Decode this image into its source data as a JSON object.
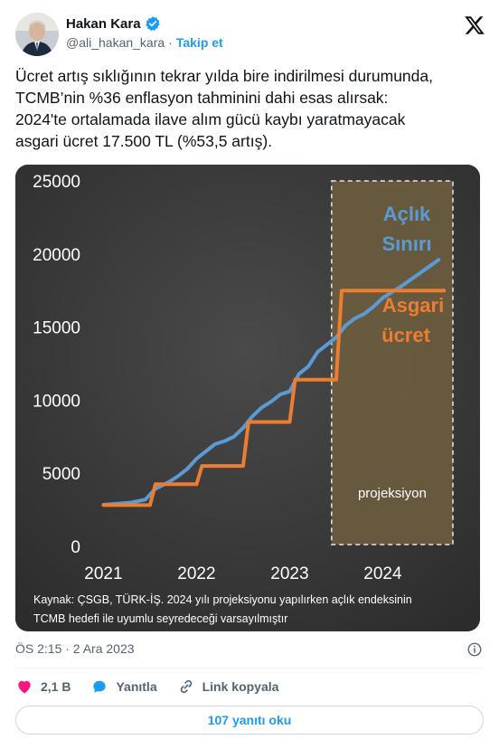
{
  "user": {
    "name": "Hakan Kara",
    "handle": "@ali_hakan_kara",
    "separator": "·",
    "follow_label": "Takip et",
    "verified_color": "#1d9bf0"
  },
  "tweet": {
    "lines": [
      "Ücret artış sıklığının tekrar yılda bire indirilmesi durumunda,",
      "TCMB’nin %36 enflasyon tahminini dahi esas alırsak:",
      "2024'te ortalamada ilave alım gücü kaybı yaratmayacak",
      "asgari ücret 17.500 TL (%53,5 artış)."
    ],
    "timestamp": "ÖS 2:15 · 2 Ara 2023"
  },
  "actions": {
    "like_count": "2,1 B",
    "reply_label": "Yanıtla",
    "copy_link_label": "Link kopyala",
    "read_replies_label": "107 yanıtı oku"
  },
  "chart_data": {
    "type": "line",
    "xlim": [
      2020.85,
      2024.85
    ],
    "ylim": [
      0,
      25000
    ],
    "y_ticks": [
      "0",
      "5000",
      "10000",
      "15000",
      "20000",
      "25000"
    ],
    "y_tick_values": [
      0,
      5000,
      10000,
      15000,
      20000,
      25000
    ],
    "x_ticks": [
      "2021",
      "2022",
      "2023",
      "2024"
    ],
    "x_tick_values": [
      2021,
      2022,
      2023,
      2024
    ],
    "series": [
      {
        "name": "Açlık Sınırı",
        "color": "#5b9bd5",
        "step": false,
        "points": [
          [
            2021.0,
            2850
          ],
          [
            2021.3,
            3000
          ],
          [
            2021.45,
            3200
          ],
          [
            2021.55,
            3900
          ],
          [
            2021.7,
            4400
          ],
          [
            2021.8,
            4800
          ],
          [
            2021.9,
            5300
          ],
          [
            2022.0,
            6000
          ],
          [
            2022.1,
            6500
          ],
          [
            2022.2,
            7000
          ],
          [
            2022.3,
            7200
          ],
          [
            2022.4,
            7500
          ],
          [
            2022.5,
            8100
          ],
          [
            2022.6,
            8900
          ],
          [
            2022.7,
            9500
          ],
          [
            2022.8,
            9900
          ],
          [
            2022.9,
            10400
          ],
          [
            2023.0,
            10600
          ],
          [
            2023.1,
            11800
          ],
          [
            2023.2,
            12300
          ],
          [
            2023.3,
            13300
          ],
          [
            2023.4,
            13800
          ],
          [
            2023.5,
            14300
          ],
          [
            2023.6,
            15100
          ],
          [
            2023.7,
            15600
          ],
          [
            2023.8,
            15900
          ],
          [
            2023.9,
            16400
          ],
          [
            2024.0,
            17000
          ],
          [
            2024.2,
            17800
          ],
          [
            2024.4,
            18700
          ],
          [
            2024.6,
            19600
          ]
        ]
      },
      {
        "name": "Asgari ücret",
        "color": "#ed7d31",
        "step": true,
        "points": [
          [
            2021.0,
            2826
          ],
          [
            2021.5,
            4253
          ],
          [
            2022.0,
            5500
          ],
          [
            2022.5,
            8507
          ],
          [
            2023.0,
            11402
          ],
          [
            2023.5,
            17500
          ],
          [
            2024.6,
            17500
          ]
        ]
      }
    ],
    "projection": {
      "from": 2023.45,
      "to": 2024.9,
      "label": "projeksiyon",
      "fill": "#6b5d3e"
    },
    "labels": {
      "acl_line1": "Açlık",
      "acl_line2": "Sınırı",
      "asg_line1": "Asgari",
      "asg_line2": "ücret"
    },
    "source_note_line1": "Kaynak: ÇSGB, TÜRK-İŞ. 2024 yılı projeksiyonu yapılırken açlık endeksinin",
    "source_note_line2": "TCMB hedefi ile uyumlu seyredeceği varsayılmıştır",
    "background": "#3b3b3b",
    "grid": false
  }
}
